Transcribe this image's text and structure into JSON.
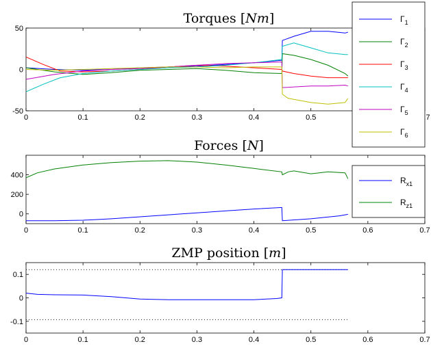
{
  "chart_data": [
    {
      "type": "line",
      "title": "Torques [Nm]",
      "title_parts": {
        "main": "Torques ",
        "lb": "[",
        "var": "Nm",
        "rb": "]"
      },
      "xlim": [
        0,
        0.7
      ],
      "ylim": [
        -50,
        50
      ],
      "x_ticks": [
        "0",
        "0.1",
        "0.2",
        "0.3",
        "0.4",
        "0.5",
        "0.6",
        "0.7"
      ],
      "y_ticks": [
        "-50",
        "0",
        "50"
      ],
      "legend_placement": "top-right",
      "series": [
        {
          "name": "Γ1",
          "base": "Γ",
          "sub": "1",
          "color": "#0000ff",
          "x": [
            0,
            0.05,
            0.1,
            0.15,
            0.2,
            0.25,
            0.3,
            0.35,
            0.4,
            0.449,
            0.45,
            0.47,
            0.5,
            0.53,
            0.56,
            0.565
          ],
          "y": [
            2,
            0,
            -1,
            0,
            2,
            3,
            4,
            6,
            8,
            11,
            35,
            40,
            46,
            46,
            44,
            45
          ]
        },
        {
          "name": "Γ2",
          "base": "Γ",
          "sub": "2",
          "color": "#008000",
          "x": [
            0,
            0.05,
            0.1,
            0.15,
            0.2,
            0.25,
            0.3,
            0.35,
            0.4,
            0.449,
            0.45,
            0.47,
            0.5,
            0.53,
            0.56,
            0.565
          ],
          "y": [
            2,
            -3,
            -6,
            -4,
            -1,
            0,
            1,
            -1,
            -4,
            -5,
            19,
            17,
            12,
            5,
            -5,
            -8
          ]
        },
        {
          "name": "Γ3",
          "base": "Γ",
          "sub": "3",
          "color": "#ff0000",
          "x": [
            0,
            0.03,
            0.06,
            0.1,
            0.15,
            0.2,
            0.25,
            0.3,
            0.35,
            0.4,
            0.449,
            0.45,
            0.47,
            0.5,
            0.53,
            0.56,
            0.565
          ],
          "y": [
            15,
            6,
            -2,
            -3,
            -2,
            0,
            3,
            5,
            4,
            2,
            0,
            -2,
            -5,
            -8,
            -10,
            -10,
            -10
          ]
        },
        {
          "name": "Γ4",
          "base": "Γ",
          "sub": "4",
          "color": "#00bfbf",
          "x": [
            0,
            0.03,
            0.06,
            0.1,
            0.15,
            0.2,
            0.25,
            0.3,
            0.35,
            0.4,
            0.449,
            0.45,
            0.47,
            0.5,
            0.53,
            0.56,
            0.565
          ],
          "y": [
            -27,
            -18,
            -10,
            -5,
            -2,
            0,
            2,
            3,
            5,
            8,
            12,
            28,
            32,
            26,
            20,
            18,
            18
          ]
        },
        {
          "name": "Γ5",
          "base": "Γ",
          "sub": "5",
          "color": "#bf00bf",
          "x": [
            0,
            0.05,
            0.1,
            0.15,
            0.2,
            0.25,
            0.3,
            0.35,
            0.4,
            0.449,
            0.45,
            0.5,
            0.53,
            0.56,
            0.565
          ],
          "y": [
            -12,
            -6,
            -2,
            0,
            1,
            3,
            5,
            7,
            8,
            9,
            -22,
            -20,
            -20,
            -19,
            -20
          ]
        },
        {
          "name": "Γ6",
          "base": "Γ",
          "sub": "6",
          "color": "#bfbf00",
          "x": [
            0,
            0.05,
            0.1,
            0.15,
            0.2,
            0.25,
            0.3,
            0.35,
            0.4,
            0.449,
            0.45,
            0.46,
            0.5,
            0.53,
            0.56,
            0.565
          ],
          "y": [
            0,
            -1,
            0,
            1,
            2,
            3,
            3,
            2,
            3,
            3,
            -30,
            -35,
            -40,
            -42,
            -40,
            -35
          ]
        }
      ]
    },
    {
      "type": "line",
      "title": "Forces [N]",
      "title_parts": {
        "main": "Forces ",
        "lb": "[",
        "var": "N",
        "rb": "]"
      },
      "xlim": [
        0,
        0.7
      ],
      "ylim": [
        -100,
        600
      ],
      "x_ticks": [
        "0",
        "0.1",
        "0.2",
        "0.3",
        "0.4",
        "0.5",
        "0.6",
        "0.7"
      ],
      "y_ticks": [
        "0",
        "200",
        "400"
      ],
      "legend_placement": "right",
      "series": [
        {
          "name": "Rx1",
          "base": "R",
          "sub": "x1",
          "color": "#0000ff",
          "x": [
            0,
            0.05,
            0.1,
            0.15,
            0.2,
            0.25,
            0.3,
            0.35,
            0.4,
            0.449,
            0.45,
            0.5,
            0.55,
            0.565
          ],
          "y": [
            -70,
            -70,
            -65,
            -50,
            -30,
            -10,
            10,
            30,
            50,
            65,
            -70,
            -50,
            -20,
            -5
          ]
        },
        {
          "name": "Rz1",
          "base": "R",
          "sub": "z1",
          "color": "#008000",
          "x": [
            0,
            0.02,
            0.05,
            0.1,
            0.15,
            0.2,
            0.25,
            0.3,
            0.35,
            0.4,
            0.449,
            0.45,
            0.46,
            0.47,
            0.5,
            0.53,
            0.56,
            0.565
          ],
          "y": [
            370,
            420,
            460,
            500,
            525,
            540,
            545,
            530,
            500,
            465,
            430,
            400,
            430,
            440,
            410,
            430,
            420,
            360
          ]
        }
      ]
    },
    {
      "type": "line",
      "title": "ZMP position [m]",
      "title_parts": {
        "main": "ZMP position ",
        "lb": "[",
        "var": "m",
        "rb": "]"
      },
      "xlim": [
        0,
        0.7
      ],
      "ylim": [
        -0.15,
        0.15
      ],
      "x_ticks": [
        "0",
        "0.1",
        "0.2",
        "0.3",
        "0.4",
        "0.5",
        "0.6",
        "0.7"
      ],
      "y_ticks": [
        "-0.1",
        "0",
        "0.1"
      ],
      "series": [
        {
          "color": "#0000ff",
          "x": [
            0,
            0.02,
            0.05,
            0.1,
            0.15,
            0.2,
            0.25,
            0.3,
            0.35,
            0.4,
            0.44,
            0.449,
            0.45,
            0.5,
            0.565
          ],
          "y": [
            0.02,
            0.015,
            0.013,
            0.012,
            0.005,
            -0.005,
            -0.008,
            -0.008,
            -0.008,
            -0.008,
            -0.003,
            0.0,
            0.12,
            0.12,
            0.12
          ]
        }
      ],
      "bounds": {
        "color": "#000000",
        "style": "dotted",
        "x": [
          0,
          0.565
        ],
        "upper": 0.12,
        "lower": -0.093
      }
    }
  ]
}
